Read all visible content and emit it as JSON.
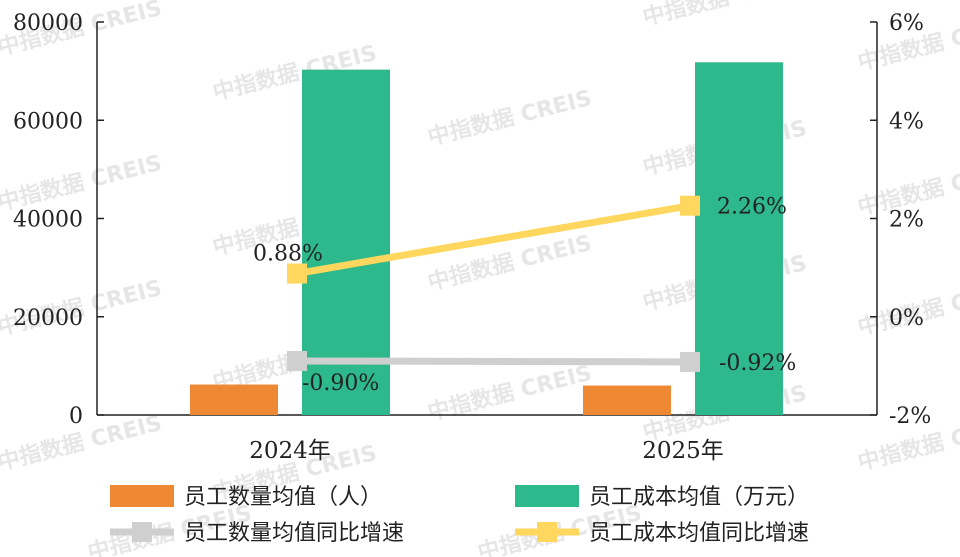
{
  "watermark": "中指数据 CREIS",
  "chart_data": {
    "type": "bar+line",
    "categories": [
      "2024年",
      "2025年"
    ],
    "left_axis": {
      "min": 0,
      "max": 80000,
      "ticks": [
        "80000",
        "60000",
        "40000",
        "20000",
        "0"
      ]
    },
    "right_axis": {
      "min": -2,
      "max": 6,
      "ticks": [
        "6%",
        "4%",
        "2%",
        "0%",
        "-2%"
      ]
    },
    "bars": [
      {
        "name": "员工数量均值（人）",
        "color": "#ee8833",
        "values": [
          6200,
          6000
        ]
      },
      {
        "name": "员工成本均值（万元）",
        "color": "#2db98c",
        "values": [
          70300,
          71800
        ]
      }
    ],
    "lines": [
      {
        "name": "员工数量均值同比增速",
        "color": "#cfcfcf",
        "values": [
          -0.9,
          -0.92
        ],
        "labels": [
          "-0.90%",
          "-0.92%"
        ]
      },
      {
        "name": "员工成本均值同比增速",
        "color": "#ffd75e",
        "values": [
          0.88,
          2.26
        ],
        "labels": [
          "0.88%",
          "2.26%"
        ]
      }
    ]
  }
}
